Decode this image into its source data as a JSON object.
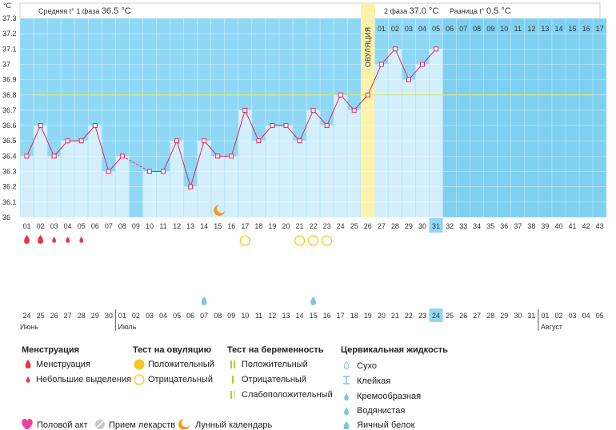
{
  "chart_data": {
    "type": "line",
    "y_unit": "°C",
    "ylim": [
      36.0,
      37.3
    ],
    "y_ticks": [
      "37.3",
      "37.2",
      "37.1",
      "37",
      "36.9",
      "36.8",
      "36.7",
      "36.6",
      "36.5",
      "36.4",
      "36.3",
      "36.2",
      "36.1",
      "36"
    ],
    "cycle_days": [
      "01",
      "02",
      "03",
      "04",
      "05",
      "06",
      "07",
      "08",
      "09",
      "10",
      "11",
      "12",
      "13",
      "14",
      "15",
      "16",
      "17",
      "18",
      "19",
      "20",
      "21",
      "22",
      "23",
      "24",
      "25",
      "26",
      "27",
      "28",
      "29",
      "30",
      "31",
      "32",
      "33",
      "34",
      "35",
      "36",
      "37",
      "38",
      "39",
      "40",
      "41",
      "42",
      "43"
    ],
    "temperatures": [
      36.4,
      36.6,
      36.4,
      36.5,
      36.5,
      36.6,
      36.3,
      36.4,
      null,
      36.3,
      36.3,
      36.5,
      36.2,
      36.5,
      36.4,
      36.4,
      36.7,
      36.5,
      36.6,
      36.6,
      36.5,
      36.7,
      36.6,
      36.8,
      36.7,
      36.8,
      37.0,
      37.1,
      36.9,
      37.0,
      37.1,
      null,
      null,
      null,
      null,
      null,
      null,
      null,
      null,
      null,
      null,
      null,
      null
    ],
    "cover_line": 36.8,
    "ovulation_day": "26",
    "ovulation_label": "ОВУЛЯЦИЯ",
    "phase1_label": "Средняя t° 1 фаза",
    "phase1_value": "36.5 °C",
    "phase2_label": "2 фаза",
    "phase2_value": "37.0 °C",
    "diff_label": "Разница t°",
    "diff_value": "0.5 °C",
    "phase2_header_days": [
      "01",
      "02",
      "03",
      "04",
      "05",
      "06",
      "07",
      "08",
      "09",
      "10",
      "11",
      "12",
      "13",
      "14",
      "15",
      "16",
      "17"
    ],
    "dates": [
      "24",
      "25",
      "26",
      "27",
      "28",
      "29",
      "30",
      "01",
      "02",
      "03",
      "04",
      "05",
      "06",
      "07",
      "08",
      "09",
      "10",
      "11",
      "12",
      "13",
      "14",
      "15",
      "16",
      "17",
      "18",
      "19",
      "20",
      "21",
      "22",
      "23",
      "24",
      "25",
      "26",
      "27",
      "28",
      "29",
      "30",
      "31",
      "01",
      "02",
      "03",
      "04",
      "05"
    ],
    "weekend_date_indices": [
      3,
      4,
      11,
      12,
      17,
      18,
      24,
      25,
      31,
      32,
      38,
      39
    ],
    "months": [
      {
        "name": "Июнь",
        "start": 0
      },
      {
        "name": "Июль",
        "start": 7
      },
      {
        "name": "Август",
        "start": 38
      }
    ],
    "today_index": 30,
    "menstruation_days": [
      {
        "i": 0,
        "type": "big"
      },
      {
        "i": 1,
        "type": "big"
      },
      {
        "i": 2,
        "type": "small"
      },
      {
        "i": 3,
        "type": "small"
      },
      {
        "i": 4,
        "type": "small"
      }
    ],
    "ovulation_test_negative_days": [
      16,
      20,
      21,
      22
    ],
    "moon_day": 14,
    "cervical_days": [
      13,
      21
    ]
  },
  "legend": {
    "menstruation": {
      "title": "Менструация",
      "items": [
        "Менструация",
        "Небольшие выделения"
      ]
    },
    "ovulation_test": {
      "title": "Тест на овуляцию",
      "items": [
        "Положительный",
        "Отрицательный"
      ]
    },
    "pregnancy_test": {
      "title": "Тест на беременность",
      "items": [
        "Положительный",
        "Отрицательный",
        "Слабоположительный"
      ]
    },
    "cervical": {
      "title": "Цервикальная жидкость",
      "items": [
        "Сухо",
        "Клейкая",
        "Кремообразная",
        "Водянистая",
        "Яичный белок"
      ]
    },
    "bottom": [
      "Половой акт",
      "Прием лекарств",
      "Лунный календарь"
    ]
  },
  "colors": {
    "sky": "#8fd8f5",
    "col": "#d4effc",
    "point": "#e0245e",
    "ovul": "#fdf3a8",
    "cover": "#d9e86c",
    "sun": "#f9c61f"
  }
}
